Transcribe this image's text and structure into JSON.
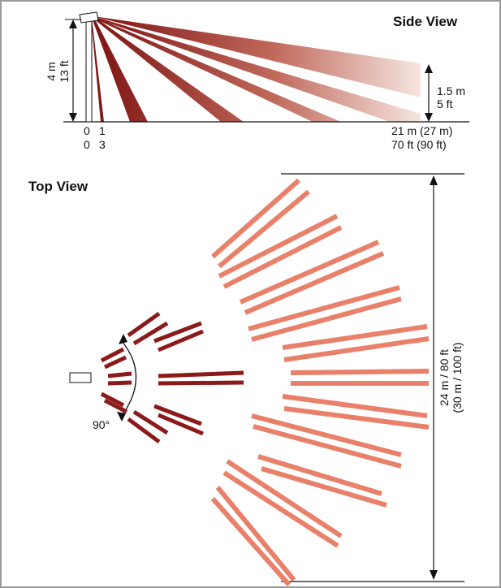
{
  "side_view": {
    "title": "Side View",
    "height_m": "4 m",
    "height_ft": "13 ft",
    "target_m": "1.5 m",
    "target_ft": "5 ft",
    "tick0_m": "0",
    "tick0_ft": "0",
    "tick1_m": "1",
    "tick1_ft": "3",
    "range_m": "21 m (27 m)",
    "range_ft": "70 ft (90 ft)"
  },
  "top_view": {
    "title": "Top View",
    "angle": "90°",
    "width_line1": "24 m / 80 ft",
    "width_line2": "(30 m / 100 ft)"
  },
  "colors": {
    "frame": "#9a9a9a",
    "beam_dark": "#8b1a1a",
    "beam_light": "#e9806a",
    "line": "#111111"
  },
  "icons": {
    "sensor": "sensor-icon",
    "arrow": "arrowhead"
  }
}
